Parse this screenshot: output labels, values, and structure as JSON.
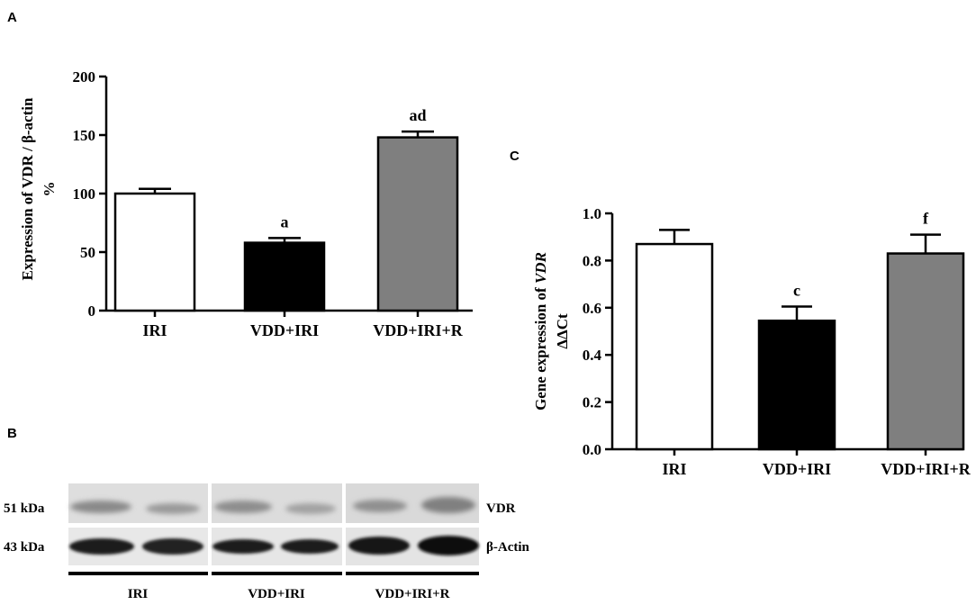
{
  "panel_labels": {
    "a": "A",
    "b": "B",
    "c": "C"
  },
  "colors": {
    "IRI": "#ffffff",
    "VDD+IRI": "#000000",
    "VDD+IRI+R": "#7f7f7f",
    "axis": "#000000"
  },
  "chart_data": [
    {
      "panel": "A",
      "type": "bar",
      "categories": [
        "IRI",
        "VDD+IRI",
        "VDD+IRI+R"
      ],
      "values": [
        100,
        58,
        148
      ],
      "errors": [
        4,
        4,
        5
      ],
      "significance": [
        "",
        "a",
        "ad"
      ],
      "ylabel_line1": "Expression of VDR / β-actin",
      "ylabel_line2": "%",
      "ylim": [
        0,
        200
      ],
      "yticks": [
        0,
        50,
        100,
        150,
        200
      ],
      "ytick_labels": [
        "0",
        "50",
        "100",
        "150",
        "200"
      ]
    },
    {
      "panel": "C",
      "type": "bar",
      "categories": [
        "IRI",
        "VDD+IRI",
        "VDD+IRI+R"
      ],
      "values": [
        0.87,
        0.545,
        0.83
      ],
      "errors": [
        0.06,
        0.06,
        0.08
      ],
      "significance": [
        "",
        "c",
        "f"
      ],
      "ylabel_line1_prefix": "Gene expression of ",
      "ylabel_line1_italic": "VDR",
      "ylabel_line2": "ΔΔCt",
      "ylim": [
        0,
        1.0
      ],
      "yticks": [
        0,
        0.2,
        0.4,
        0.6,
        0.8,
        1.0
      ],
      "ytick_labels": [
        "0.0",
        "0.2",
        "0.4",
        "0.6",
        "0.8",
        "1.0"
      ]
    }
  ],
  "blot": {
    "rows": [
      {
        "kda": "51 kDa",
        "protein": "VDR"
      },
      {
        "kda": "43 kDa",
        "protein": "β-Actin"
      }
    ],
    "groups": [
      "IRI",
      "VDD+IRI",
      "VDD+IRI+R"
    ]
  }
}
